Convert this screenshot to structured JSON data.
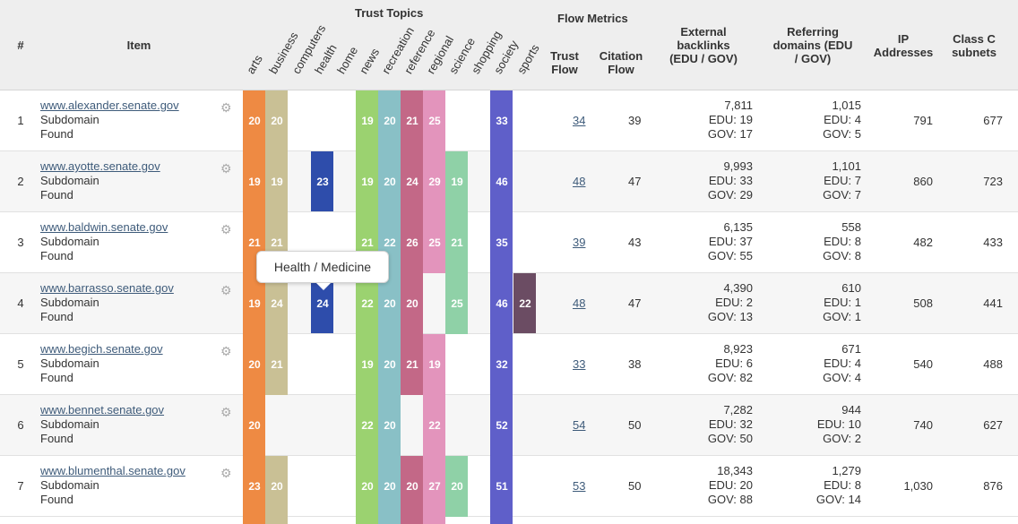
{
  "header": {
    "num": "#",
    "item": "Item",
    "trust_topics": "Trust Topics",
    "flow_metrics": "Flow Metrics",
    "trust_flow": "Trust Flow",
    "citation_flow": "Citation Flow",
    "external_backlinks": "External backlinks (EDU / GOV)",
    "referring_domains": "Referring domains (EDU / GOV)",
    "ip_addresses": "IP Addresses",
    "class_c": "Class C subnets"
  },
  "topics": [
    "arts",
    "business",
    "computers",
    "health",
    "home",
    "news",
    "recreation",
    "reference",
    "regional",
    "science",
    "shopping",
    "society",
    "sports"
  ],
  "colors": {
    "arts": "#ee8a43",
    "business": "#c9c095",
    "computers": "#ec6a6a",
    "health": "#2e4dab",
    "home": "#ffffff",
    "news": "#9bd270",
    "recreation": "#89c0c6",
    "reference": "#c36887",
    "regional": "#e394bc",
    "science": "#8fd1a7",
    "shopping": "#ffffff",
    "society": "#5f5fc9",
    "sports": "#6b4c63"
  },
  "tooltip": "Health / Medicine",
  "rows": [
    {
      "num": "1",
      "domain": "www.alexander.senate.gov",
      "type": "Subdomain",
      "status": "Found",
      "topics": {
        "arts": "20",
        "business": "20",
        "news": "19",
        "recreation": "20",
        "reference": "21",
        "regional": "25",
        "society": "33"
      },
      "trust_flow": "34",
      "citation_flow": "39",
      "backlinks": "7,811",
      "bl_edu": "EDU: 19",
      "bl_gov": "GOV: 17",
      "refdomains": "1,015",
      "rd_edu": "EDU: 4",
      "rd_gov": "GOV: 5",
      "ips": "791",
      "subnets": "677"
    },
    {
      "num": "2",
      "domain": "www.ayotte.senate.gov",
      "type": "Subdomain",
      "status": "Found",
      "topics": {
        "arts": "19",
        "business": "19",
        "health": "23",
        "news": "19",
        "recreation": "20",
        "reference": "24",
        "regional": "29",
        "science": "19",
        "society": "46"
      },
      "trust_flow": "48",
      "citation_flow": "47",
      "backlinks": "9,993",
      "bl_edu": "EDU: 33",
      "bl_gov": "GOV: 29",
      "refdomains": "1,101",
      "rd_edu": "EDU: 7",
      "rd_gov": "GOV: 7",
      "ips": "860",
      "subnets": "723"
    },
    {
      "num": "3",
      "domain": "www.baldwin.senate.gov",
      "type": "Subdomain",
      "status": "Found",
      "topics": {
        "arts": "21",
        "business": "21",
        "news": "21",
        "recreation": "22",
        "reference": "26",
        "regional": "25",
        "science": "21",
        "society": "35"
      },
      "trust_flow": "39",
      "citation_flow": "43",
      "backlinks": "6,135",
      "bl_edu": "EDU: 37",
      "bl_gov": "GOV: 55",
      "refdomains": "558",
      "rd_edu": "EDU: 8",
      "rd_gov": "GOV: 8",
      "ips": "482",
      "subnets": "433"
    },
    {
      "num": "4",
      "domain": "www.barrasso.senate.gov",
      "type": "Subdomain",
      "status": "Found",
      "topics": {
        "arts": "19",
        "business": "24",
        "health": "24",
        "news": "22",
        "recreation": "20",
        "reference": "20",
        "science": "25",
        "society": "46",
        "sports": "22"
      },
      "trust_flow": "48",
      "citation_flow": "47",
      "backlinks": "4,390",
      "bl_edu": "EDU: 2",
      "bl_gov": "GOV: 13",
      "refdomains": "610",
      "rd_edu": "EDU: 1",
      "rd_gov": "GOV: 1",
      "ips": "508",
      "subnets": "441"
    },
    {
      "num": "5",
      "domain": "www.begich.senate.gov",
      "type": "Subdomain",
      "status": "Found",
      "topics": {
        "arts": "20",
        "business": "21",
        "news": "19",
        "recreation": "20",
        "reference": "21",
        "regional": "19",
        "society": "32"
      },
      "trust_flow": "33",
      "citation_flow": "38",
      "backlinks": "8,923",
      "bl_edu": "EDU: 6",
      "bl_gov": "GOV: 82",
      "refdomains": "671",
      "rd_edu": "EDU: 4",
      "rd_gov": "GOV: 4",
      "ips": "540",
      "subnets": "488"
    },
    {
      "num": "6",
      "domain": "www.bennet.senate.gov",
      "type": "Subdomain",
      "status": "Found",
      "topics": {
        "arts": "20",
        "news": "22",
        "recreation": "20",
        "regional": "22",
        "society": "52"
      },
      "trust_flow": "54",
      "citation_flow": "50",
      "backlinks": "7,282",
      "bl_edu": "EDU: 32",
      "bl_gov": "GOV: 50",
      "refdomains": "944",
      "rd_edu": "EDU: 10",
      "rd_gov": "GOV: 2",
      "ips": "740",
      "subnets": "627"
    },
    {
      "num": "7",
      "domain": "www.blumenthal.senate.gov",
      "type": "Subdomain",
      "status": "Found",
      "topics": {
        "arts": "23",
        "business": "20",
        "news": "20",
        "recreation": "20",
        "reference": "20",
        "regional": "27",
        "science": "20",
        "society": "51"
      },
      "trust_flow": "53",
      "citation_flow": "50",
      "backlinks": "18,343",
      "bl_edu": "EDU: 20",
      "bl_gov": "GOV: 88",
      "refdomains": "1,279",
      "rd_edu": "EDU: 8",
      "rd_gov": "GOV: 14",
      "ips": "1,030",
      "subnets": "876"
    }
  ]
}
